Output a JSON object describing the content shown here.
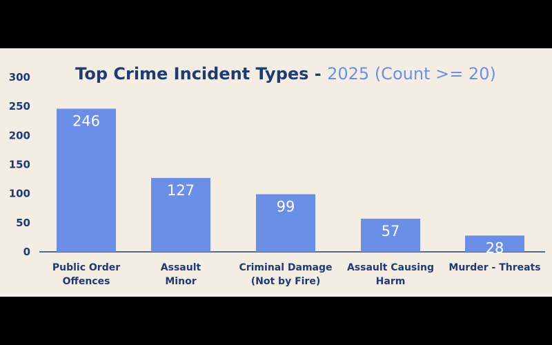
{
  "chart_data": {
    "type": "bar",
    "title": "Top Crime Incident Types - ",
    "subtitle": "2025 (Count >= 20)",
    "xlabel": "",
    "ylabel": "",
    "ylim": [
      0,
      300
    ],
    "yticks": [
      0,
      50,
      100,
      150,
      200,
      250,
      300
    ],
    "grid": false,
    "categories": [
      [
        "Public Order",
        "Offences"
      ],
      [
        "Assault",
        "Minor"
      ],
      [
        "Criminal Damage",
        "(Not by Fire)"
      ],
      [
        "Assault Causing",
        "Harm"
      ],
      [
        "Murder - Threats"
      ]
    ],
    "values": [
      246,
      127,
      99,
      57,
      28
    ],
    "colors": {
      "bar": "#6b8fe6",
      "title": "#1f3b70",
      "subtitle": "#6b8fe6",
      "background": "#f4ede4"
    }
  }
}
